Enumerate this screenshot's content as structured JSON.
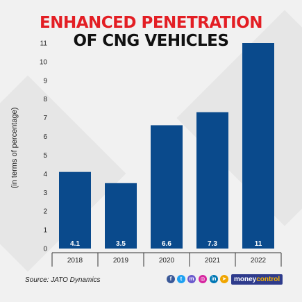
{
  "title": {
    "line1": "ENHANCED PENETRATION",
    "line2": "OF CNG VEHICLES"
  },
  "source": "Source: JATO Dynamics",
  "brand": {
    "part1": "money",
    "part2": "control"
  },
  "social_icons": [
    "facebook-icon",
    "twitter-icon",
    "messenger-icon",
    "instagram-icon",
    "linkedin-icon",
    "telegram-icon"
  ],
  "colors": {
    "bar": "#0a4a8c",
    "title_accent": "#e31e24",
    "title_dark": "#111111"
  },
  "chart_data": {
    "type": "bar",
    "categories": [
      "2018",
      "2019",
      "2020",
      "2021",
      "2022"
    ],
    "values": [
      4.1,
      3.5,
      6.6,
      7.3,
      11
    ],
    "value_labels": [
      "4.1",
      "3.5",
      "6.6",
      "7.3",
      "11"
    ],
    "yticks": [
      "0",
      "1",
      "2",
      "3",
      "4",
      "5",
      "6",
      "7",
      "8",
      "9",
      "10",
      "11"
    ],
    "ylabel": "(in terms of percentage)",
    "xlabel": "",
    "ylim": [
      0,
      11
    ],
    "grid": false,
    "legend": "none"
  }
}
